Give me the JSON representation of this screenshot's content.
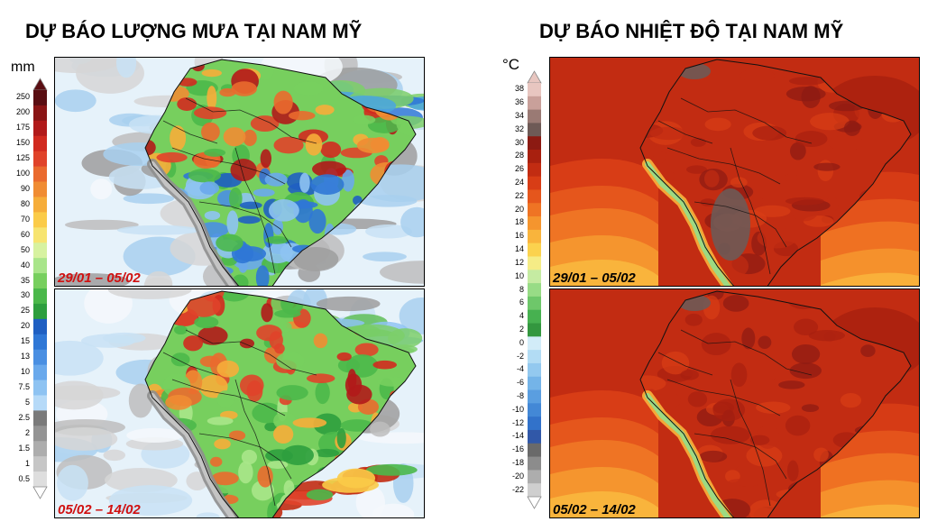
{
  "rain": {
    "title": "DỰ BÁO LƯỢNG MƯA TẠI NAM MỸ",
    "unit": "mm",
    "scale_labels": [
      "250",
      "200",
      "175",
      "150",
      "125",
      "100",
      "90",
      "80",
      "70",
      "60",
      "50",
      "40",
      "35",
      "30",
      "25",
      "20",
      "15",
      "13",
      "10",
      "7.5",
      "5",
      "2.5",
      "2",
      "1.5",
      "1",
      "0.5"
    ],
    "scale_colors": [
      "#5a0e12",
      "#8a1515",
      "#b11a1a",
      "#d12a1f",
      "#e0432a",
      "#ea6a2e",
      "#f08c33",
      "#f6ad3a",
      "#fbcb48",
      "#f7e470",
      "#d7f2a0",
      "#a9e58a",
      "#77cf5e",
      "#4bb84a",
      "#2e9e3e",
      "#1f5fc2",
      "#2f77d6",
      "#4a8fe2",
      "#6aa9ec",
      "#8ec3f2",
      "#b6daf8",
      "#7a7a7a",
      "#949494",
      "#adadad",
      "#c6c6c6",
      "#dedede"
    ],
    "panels": [
      {
        "period": "29/01 – 05/02"
      },
      {
        "period": "05/02 – 14/02"
      }
    ]
  },
  "temp": {
    "title": "DỰ BÁO NHIỆT ĐỘ TẠI NAM MỸ",
    "unit": "°C",
    "scale_labels": [
      "38",
      "36",
      "34",
      "32",
      "30",
      "28",
      "26",
      "24",
      "22",
      "20",
      "18",
      "16",
      "14",
      "12",
      "10",
      "8",
      "6",
      "4",
      "2",
      "0",
      "-2",
      "-4",
      "-6",
      "-8",
      "-10",
      "-12",
      "-14",
      "-16",
      "-18",
      "-20",
      "-22"
    ],
    "scale_colors": [
      "#e8c6c0",
      "#c9a09a",
      "#9a7a74",
      "#6e5a56",
      "#8c1a12",
      "#a8200f",
      "#c22c12",
      "#d83d16",
      "#e5561c",
      "#ef7424",
      "#f5952e",
      "#f9b43c",
      "#fbd24e",
      "#f5ec86",
      "#c5eba2",
      "#98dc86",
      "#6ec76a",
      "#47b150",
      "#33973f",
      "#d2ecf8",
      "#b2dcf4",
      "#93c9ef",
      "#74b4e8",
      "#5a9ee0",
      "#4388d6",
      "#3272ca",
      "#3158a8",
      "#6a6a6a",
      "#8c8c8c",
      "#adadad",
      "#cfcfcf"
    ],
    "panels": [
      {
        "period": "29/01 – 05/02"
      },
      {
        "period": "05/02 – 14/02"
      }
    ]
  },
  "icons": {
    "scale_top": "triangle-up-icon",
    "scale_bottom": "triangle-down-icon"
  }
}
